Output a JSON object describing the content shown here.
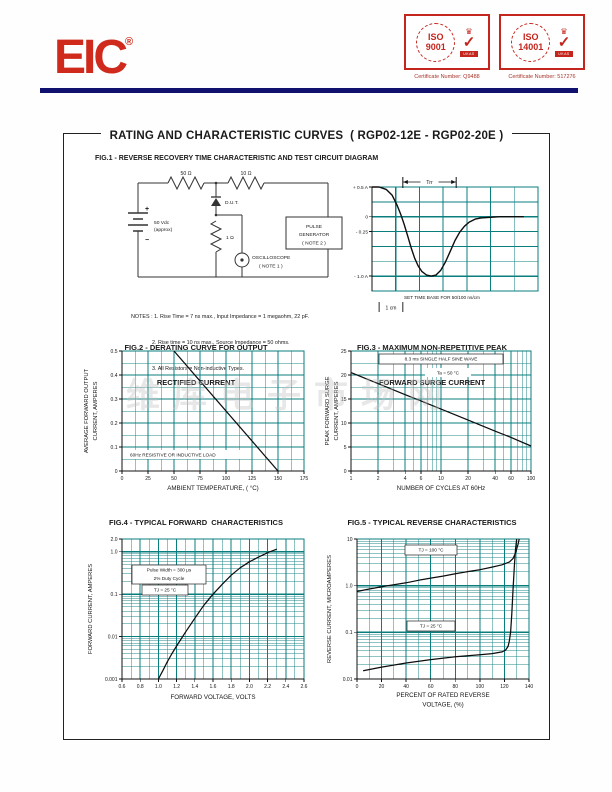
{
  "header": {
    "logo_text": "EIC",
    "icons": {
      "registered": "®",
      "crown": "♛",
      "check": "✓"
    },
    "stamps": [
      {
        "iso_org": "ISO",
        "iso_num": "9001",
        "badge": "UKAS",
        "cert": "Certificate Number: Q9488"
      },
      {
        "iso_org": "ISO",
        "iso_num": "14001",
        "badge": "UKAS",
        "cert": "Certificate Number: 517276"
      }
    ]
  },
  "page": {
    "title": "RATING AND CHARACTERISTIC CURVES  ( RGP02-12E - RGP02-20E )"
  },
  "watermark": "维库电子市场网",
  "fig1": {
    "title": "FIG.1 - REVERSE RECOVERY TIME CHARACTERISTIC AND TEST CIRCUIT DIAGRAM",
    "circuit": {
      "r1": "50 Ω",
      "r2": "10 Ω",
      "r3": "1 Ω",
      "battery_v": "50 Vdc",
      "battery_approx": "(approx)",
      "plus": "+",
      "minus": "−",
      "dut": "D.U.T.",
      "pulse1": "PULSE",
      "pulse2": "GENERATOR",
      "pulse3": "( NOTE 2 )",
      "scope1": "OSCILLOSCOPE",
      "scope2": "( NOTE 1 )"
    },
    "notes": [
      "NOTES : 1. Rise Time = 7 ns max., Input Impedance = 1 megaohm, 22 pF.",
      "2. Rise time = 10 ns max., Source Impedance = 50 ohms.",
      "3. All Resistors = Non-inductive Types."
    ]
  },
  "chart_data": [
    {
      "id": "fig1-waveform",
      "type": "line",
      "x_scale": "linear",
      "y_scale": "linear",
      "x_min": 0,
      "x_max": 7,
      "x_major": 1,
      "x_minor": 1,
      "y_min": -1.25,
      "y_max": 0.5,
      "y_major": 0.25,
      "y_minor": 0.25,
      "x_ticks": [],
      "y_ticks": [
        {
          "v": 0.5,
          "label": "+ 0.5 A"
        },
        {
          "v": 0,
          "label": "0"
        },
        {
          "v": -0.25,
          "label": "- 0.25"
        },
        {
          "v": -1,
          "label": "- 1.0 A"
        }
      ],
      "annotations": [
        "Trr",
        "SET TIME BASE FOR  50/100 ns/cm",
        "1 cm"
      ],
      "trr_span": [
        1.3,
        3.55
      ],
      "series": [
        {
          "name": "reverse-recovery-waveform",
          "points": [
            [
              0,
              0.5
            ],
            [
              0.3,
              0.5
            ],
            [
              0.6,
              0.46
            ],
            [
              0.85,
              0.36
            ],
            [
              1.05,
              0.2
            ],
            [
              1.2,
              0.05
            ],
            [
              1.35,
              -0.12
            ],
            [
              1.5,
              -0.32
            ],
            [
              1.65,
              -0.52
            ],
            [
              1.8,
              -0.7
            ],
            [
              1.95,
              -0.83
            ],
            [
              2.1,
              -0.92
            ],
            [
              2.3,
              -0.98
            ],
            [
              2.5,
              -1.0
            ],
            [
              2.7,
              -0.98
            ],
            [
              2.9,
              -0.9
            ],
            [
              3.1,
              -0.76
            ],
            [
              3.3,
              -0.58
            ],
            [
              3.5,
              -0.4
            ],
            [
              3.7,
              -0.26
            ],
            [
              3.9,
              -0.16
            ],
            [
              4.1,
              -0.09
            ],
            [
              4.35,
              -0.04
            ],
            [
              4.6,
              -0.02
            ],
            [
              5.0,
              -0.01
            ],
            [
              5.4,
              0
            ],
            [
              6.4,
              0
            ]
          ]
        }
      ]
    },
    {
      "id": "fig2",
      "type": "line",
      "title_lines": [
        "FIG.2 - DERATING CURVE FOR OUTPUT",
        "RECTIFIED CURRENT"
      ],
      "xlabel": "AMBIENT TEMPERATURE, ( °C)",
      "ylabel_lines": [
        "AVERAGE FORWARD OUTPUT",
        "CURRENT, AMPERES"
      ],
      "x_scale": "linear",
      "x_min": 0,
      "x_max": 175,
      "x_major": 25,
      "x_minor": 12.5,
      "y_scale": "linear",
      "y_min": 0,
      "y_max": 0.5,
      "y_major": 0.1,
      "y_minor": 0.05,
      "x_ticks": [
        {
          "v": 0,
          "label": "0"
        },
        {
          "v": 25,
          "label": "25"
        },
        {
          "v": 50,
          "label": "50"
        },
        {
          "v": 75,
          "label": "75"
        },
        {
          "v": 100,
          "label": "100"
        },
        {
          "v": 125,
          "label": "125"
        },
        {
          "v": 150,
          "label": "150"
        },
        {
          "v": 175,
          "label": "175"
        }
      ],
      "y_ticks": [
        {
          "v": 0,
          "label": "0"
        },
        {
          "v": 0.1,
          "label": "0.1"
        },
        {
          "v": 0.2,
          "label": "0.2"
        },
        {
          "v": 0.3,
          "label": "0.3"
        },
        {
          "v": 0.4,
          "label": "0.4"
        },
        {
          "v": 0.5,
          "label": "0.5"
        }
      ],
      "annotations": [
        "60Hz RESISTIVE OR INDUCTIVE LOAD"
      ],
      "series": [
        {
          "name": "derating",
          "points": [
            [
              50,
              0.5
            ],
            [
              150,
              0
            ]
          ]
        }
      ]
    },
    {
      "id": "fig3",
      "type": "line",
      "title_lines": [
        "FIG.3 - MAXIMUM NON-REPETITIVE PEAK",
        "FORWARD SURGE CURRENT"
      ],
      "xlabel": "NUMBER OF CYCLES AT 60Hz",
      "ylabel_lines": [
        "PEAK FORWARD SURGE",
        "CURRENT, AMPERES"
      ],
      "x_scale": "log",
      "x_min": 1,
      "x_max": 100,
      "y_scale": "linear",
      "y_min": 0,
      "y_max": 25,
      "y_major": 5,
      "y_minor": 2.5,
      "x_ticks": [
        {
          "v": 1,
          "label": "1"
        },
        {
          "v": 2,
          "label": "2"
        },
        {
          "v": 4,
          "label": "4"
        },
        {
          "v": 6,
          "label": "6"
        },
        {
          "v": 10,
          "label": "10"
        },
        {
          "v": 20,
          "label": "20"
        },
        {
          "v": 40,
          "label": "40"
        },
        {
          "v": 60,
          "label": "60"
        },
        {
          "v": 100,
          "label": "100"
        }
      ],
      "y_ticks": [
        {
          "v": 0,
          "label": "0"
        },
        {
          "v": 5,
          "label": "5"
        },
        {
          "v": 10,
          "label": "10"
        },
        {
          "v": 15,
          "label": "15"
        },
        {
          "v": 20,
          "label": "20"
        },
        {
          "v": 25,
          "label": "25"
        }
      ],
      "annotations": [
        "8.3 ms SINGLE HALF SINE WAVE",
        "Ta = 50 °C"
      ],
      "series": [
        {
          "name": "surge",
          "points": [
            [
              1,
              20.5
            ],
            [
              2,
              18.2
            ],
            [
              4,
              15.9
            ],
            [
              6,
              14.6
            ],
            [
              10,
              12.9
            ],
            [
              20,
              10.6
            ],
            [
              40,
              8.3
            ],
            [
              60,
              7.0
            ],
            [
              100,
              5.2
            ]
          ]
        }
      ]
    },
    {
      "id": "fig4",
      "type": "line",
      "title": "FIG.4 - TYPICAL FORWARD  CHARACTERISTICS",
      "xlabel": "FORWARD VOLTAGE, VOLTS",
      "ylabel_lines": [
        "FORWARD CURRENT, AMPERES"
      ],
      "x_scale": "linear",
      "x_min": 0.6,
      "x_max": 2.6,
      "x_major": 0.2,
      "x_minor": 0.1,
      "y_scale": "log",
      "y_min": 0.001,
      "y_max": 2.0,
      "x_ticks": [
        {
          "v": 0.6,
          "label": "0.6"
        },
        {
          "v": 0.8,
          "label": "0.8"
        },
        {
          "v": 1.0,
          "label": "1.0"
        },
        {
          "v": 1.2,
          "label": "1.2"
        },
        {
          "v": 1.4,
          "label": "1.4"
        },
        {
          "v": 1.6,
          "label": "1.6"
        },
        {
          "v": 1.8,
          "label": "1.8"
        },
        {
          "v": 2.0,
          "label": "2.0"
        },
        {
          "v": 2.2,
          "label": "2.2"
        },
        {
          "v": 2.4,
          "label": "2.4"
        },
        {
          "v": 2.6,
          "label": "2.6"
        }
      ],
      "y_ticks": [
        {
          "v": 2,
          "label": "2.0"
        },
        {
          "v": 1,
          "label": "1.0"
        },
        {
          "v": 0.1,
          "label": "0.1"
        },
        {
          "v": 0.01,
          "label": "0.01"
        },
        {
          "v": 0.001,
          "label": "0.001"
        }
      ],
      "annotations": [
        "Pulse Width = 300 μs",
        "2% Duty Cycle",
        "TJ = 25 °C"
      ],
      "series": [
        {
          "name": "forward",
          "points": [
            [
              1.0,
              0.001
            ],
            [
              1.05,
              0.0016
            ],
            [
              1.1,
              0.0026
            ],
            [
              1.15,
              0.004
            ],
            [
              1.2,
              0.006
            ],
            [
              1.3,
              0.013
            ],
            [
              1.4,
              0.027
            ],
            [
              1.5,
              0.055
            ],
            [
              1.6,
              0.1
            ],
            [
              1.7,
              0.17
            ],
            [
              1.8,
              0.28
            ],
            [
              1.9,
              0.42
            ],
            [
              2.0,
              0.58
            ],
            [
              2.1,
              0.75
            ],
            [
              2.2,
              0.95
            ],
            [
              2.3,
              1.15
            ]
          ]
        }
      ]
    },
    {
      "id": "fig5",
      "type": "line",
      "title": "FIG.5 - TYPICAL REVERSE CHARACTERISTICS",
      "xlabel_lines": [
        "PERCENT OF RATED REVERSE",
        "VOLTAGE, (%)"
      ],
      "ylabel_lines": [
        "REVERSE CURRENT, MICROAMPERES"
      ],
      "x_scale": "linear",
      "x_min": 0,
      "x_max": 140,
      "x_major": 20,
      "x_minor": 10,
      "y_scale": "log",
      "y_min": 0.01,
      "y_max": 10,
      "x_ticks": [
        {
          "v": 0,
          "label": "0"
        },
        {
          "v": 20,
          "label": "20"
        },
        {
          "v": 40,
          "label": "40"
        },
        {
          "v": 60,
          "label": "60"
        },
        {
          "v": 80,
          "label": "80"
        },
        {
          "v": 100,
          "label": "100"
        },
        {
          "v": 120,
          "label": "120"
        },
        {
          "v": 140,
          "label": "140"
        }
      ],
      "y_ticks": [
        {
          "v": 10,
          "label": "10"
        },
        {
          "v": 1,
          "label": "1.0"
        },
        {
          "v": 0.1,
          "label": "0.1"
        },
        {
          "v": 0.01,
          "label": "0.01"
        }
      ],
      "annotations": [
        "TJ = 100 °C",
        "TJ = 25 °C"
      ],
      "series": [
        {
          "name": "TJ = 100 °C",
          "points": [
            [
              0,
              0.75
            ],
            [
              10,
              0.85
            ],
            [
              20,
              0.95
            ],
            [
              30,
              1.05
            ],
            [
              40,
              1.15
            ],
            [
              50,
              1.3
            ],
            [
              60,
              1.45
            ],
            [
              70,
              1.6
            ],
            [
              80,
              1.8
            ],
            [
              90,
              2.0
            ],
            [
              100,
              2.2
            ],
            [
              110,
              2.5
            ],
            [
              118,
              2.8
            ],
            [
              124,
              3.2
            ],
            [
              127,
              3.8
            ],
            [
              129,
              5
            ],
            [
              131,
              7.5
            ],
            [
              132,
              10
            ]
          ]
        },
        {
          "name": "TJ = 25 °C",
          "points": [
            [
              5,
              0.015
            ],
            [
              20,
              0.018
            ],
            [
              40,
              0.022
            ],
            [
              60,
              0.026
            ],
            [
              80,
              0.03
            ],
            [
              100,
              0.033
            ],
            [
              110,
              0.035
            ],
            [
              118,
              0.038
            ],
            [
              121,
              0.042
            ],
            [
              123,
              0.05
            ],
            [
              124,
              0.065
            ],
            [
              125,
              0.1
            ],
            [
              126,
              0.25
            ],
            [
              127,
              0.8
            ],
            [
              128,
              2.5
            ],
            [
              129,
              6
            ],
            [
              130,
              10
            ]
          ]
        }
      ]
    }
  ]
}
